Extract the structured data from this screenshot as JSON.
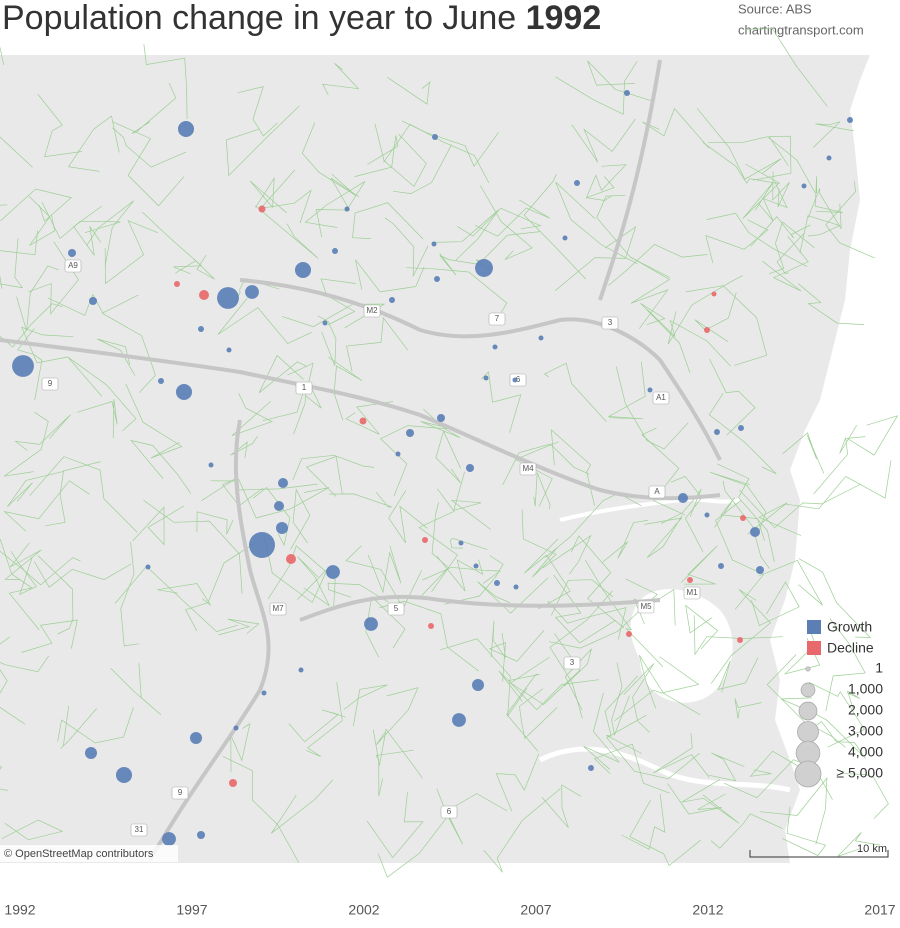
{
  "header": {
    "title": "Population change in year to June",
    "title_year": 1992,
    "source": "Source: ABS",
    "site": "chartingtransport.com"
  },
  "map": {
    "attribution": "© OpenStreetMap contributors",
    "scale": "10 km",
    "road_labels": [
      "A9",
      "9",
      "M2",
      "7",
      "3",
      "6",
      "A1",
      "M4",
      "A",
      "M7",
      "5",
      "M5",
      "M1",
      "3",
      "9",
      "31",
      "6",
      "1"
    ]
  },
  "legend": {
    "colors": [
      {
        "name": "Growth",
        "color": "#5b7fb5"
      },
      {
        "name": "Decline",
        "color": "#e8696b"
      }
    ],
    "sizes": [
      1,
      {
        "value": 1000,
        "label": "1,000"
      },
      {
        "value": 2000,
        "label": "2,000"
      },
      {
        "value": 3000,
        "label": "3,000"
      },
      {
        "value": 4000,
        "label": "4,000"
      },
      {
        "value": 5000,
        "label": "≥ 5,000"
      }
    ]
  },
  "bubbles": [
    {
      "value": 1500
    },
    {
      "value": 3300
    },
    {
      "value": 3300
    },
    {
      "value": 5000
    },
    {
      "value": 2000
    },
    {
      "value": 1500
    },
    {
      "value": 1500
    },
    {
      "value": 1000
    },
    {
      "value": 1000
    },
    {
      "value": 1000
    },
    {
      "value": 1500
    },
    {
      "value": 660
    },
    {
      "value": 1000
    },
    {
      "value": 660
    },
    {
      "value": 660
    },
    {
      "value": 1000
    },
    {
      "value": 660
    },
    {
      "value": 370
    },
    {
      "value": 370
    },
    {
      "value": 370
    },
    {
      "value": 370
    },
    {
      "value": 165
    },
    {
      "value": 165
    },
    {
      "value": 165
    },
    {
      "value": 40
    },
    {
      "value": 165
    },
    {
      "value": 165
    },
    {
      "value": 165
    },
    {
      "value": 165
    },
    {
      "value": -370
    },
    {
      "value": -370
    },
    {
      "value": -90
    },
    {
      "value": -40
    },
    {
      "value": -90
    },
    {
      "value": -165
    },
    {
      "value": -40
    },
    {
      "value": -40
    },
    {
      "value": -40
    },
    {
      "value": -40
    },
    {
      "value": -40
    },
    {
      "value": -10
    },
    {
      "value": -40
    },
    {
      "value": -40
    },
    {
      "value": 40
    },
    {
      "value": 40
    },
    {
      "value": 10
    },
    {
      "value": 40
    },
    {
      "value": 40
    },
    {
      "value": 40
    },
    {
      "value": 10
    },
    {
      "value": 10
    },
    {
      "value": 10
    },
    {
      "value": 40
    },
    {
      "value": 10
    },
    {
      "value": 40
    },
    {
      "value": 40
    },
    {
      "value": 10
    },
    {
      "value": 10
    },
    {
      "value": 40
    },
    {
      "value": 40
    },
    {
      "value": 10
    },
    {
      "value": 40
    },
    {
      "value": 40
    },
    {
      "value": 10
    },
    {
      "value": 10
    },
    {
      "value": 10
    },
    {
      "value": 10
    },
    {
      "value": 10
    },
    {
      "value": 40
    },
    {
      "value": 10
    },
    {
      "value": 10
    },
    {
      "value": 10
    },
    {
      "value": 10
    },
    {
      "value": 10
    },
    {
      "value": 10
    },
    {
      "value": 10
    },
    {
      "value": 10
    },
    {
      "value": 10
    }
  ],
  "timeline": {
    "years": [
      1992,
      1997,
      2002,
      2007,
      2012,
      2017
    ]
  }
}
